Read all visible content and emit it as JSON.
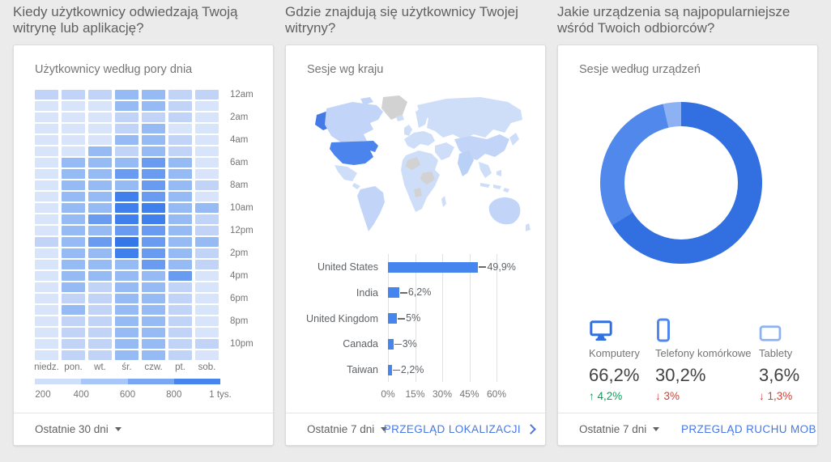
{
  "page": {
    "background": "#ebebeb",
    "link_color": "#4778e7"
  },
  "cards": {
    "time": {
      "question": "Kiedy użytkownicy odwiedzają Twoją witrynę lub aplikację?",
      "title": "Użytkownicy według pory dnia",
      "footer_range": "Ostatnie 30 dni"
    },
    "geo": {
      "question": "Gdzie znajdują się użytkownicy Twojej witryny?",
      "title": "Sesje wg kraju",
      "footer_range": "Ostatnie 7 dni",
      "footer_link": "PRZEGLĄD LOKALIZACJI"
    },
    "devices": {
      "question": "Jakie urządzenia są najpopularniejsze wśród Twoich odbiorców?",
      "title": "Sesje według urządzeń",
      "footer_range": "Ostatnie 7 dni",
      "footer_link": "PRZEGLĄD RUCHU MOBILNE"
    }
  },
  "chart_data": [
    {
      "type": "heatmap",
      "title": "Użytkownicy według pory dnia",
      "day_labels": [
        "niedz.",
        "pon.",
        "wt.",
        "śr.",
        "czw.",
        "pt.",
        "sob."
      ],
      "hour_labels": [
        "12am",
        "2am",
        "4am",
        "6am",
        "8am",
        "10am",
        "12pm",
        "2pm",
        "4pm",
        "6pm",
        "8pm",
        "10pm"
      ],
      "legend_labels": [
        "200",
        "400",
        "600",
        "800",
        "1 tys."
      ],
      "legend_colors": [
        "#cfdffa",
        "#a8c6f7",
        "#7aa7f2",
        "#4685ed"
      ],
      "palette": [
        "#d8e4fa",
        "#c1d4f8",
        "#96baf4",
        "#699cf0",
        "#4080ec",
        "#3576e9"
      ],
      "scale_min": 200,
      "scale_max": 1000,
      "matrix": [
        [
          2,
          2,
          2,
          3,
          3,
          2,
          2
        ],
        [
          1,
          1,
          1,
          3,
          3,
          2,
          1
        ],
        [
          1,
          1,
          1,
          2,
          2,
          2,
          1
        ],
        [
          1,
          1,
          1,
          2,
          3,
          1,
          1
        ],
        [
          1,
          1,
          1,
          3,
          3,
          2,
          1
        ],
        [
          1,
          1,
          3,
          2,
          3,
          2,
          1
        ],
        [
          1,
          3,
          3,
          3,
          4,
          3,
          1
        ],
        [
          1,
          3,
          3,
          4,
          4,
          3,
          1
        ],
        [
          1,
          3,
          3,
          3,
          4,
          3,
          2
        ],
        [
          1,
          3,
          3,
          5,
          4,
          3,
          1
        ],
        [
          1,
          3,
          3,
          5,
          5,
          3,
          3
        ],
        [
          1,
          3,
          4,
          5,
          5,
          3,
          2
        ],
        [
          1,
          3,
          3,
          4,
          4,
          3,
          2
        ],
        [
          2,
          3,
          4,
          6,
          4,
          3,
          3
        ],
        [
          1,
          3,
          3,
          5,
          4,
          3,
          2
        ],
        [
          1,
          3,
          3,
          3,
          4,
          3,
          2
        ],
        [
          1,
          3,
          3,
          3,
          3,
          4,
          1
        ],
        [
          1,
          3,
          2,
          3,
          3,
          2,
          1
        ],
        [
          1,
          2,
          2,
          3,
          3,
          2,
          1
        ],
        [
          1,
          3,
          2,
          3,
          3,
          2,
          1
        ],
        [
          1,
          2,
          2,
          3,
          3,
          2,
          1
        ],
        [
          1,
          2,
          2,
          3,
          3,
          2,
          1
        ],
        [
          1,
          2,
          2,
          3,
          3,
          2,
          2
        ],
        [
          1,
          2,
          2,
          3,
          3,
          2,
          1
        ]
      ]
    },
    {
      "type": "bar",
      "title": "Sesje wg kraju",
      "categories": [
        "United States",
        "India",
        "United Kingdom",
        "Canada",
        "Taiwan"
      ],
      "values": [
        49.9,
        6.2,
        5,
        3,
        2.2
      ],
      "value_labels": [
        "49,9%",
        "6,2%",
        "5%",
        "3%",
        "2,2%"
      ],
      "xticks": [
        "0%",
        "15%",
        "30%",
        "45%",
        "60%"
      ],
      "xlim": [
        0,
        60
      ],
      "bar_color": "#4684ee",
      "map_colors": {
        "land": "#cedef9",
        "alt": "#c2d5f8",
        "muted": "#d2d2d2",
        "highlight_us": "#4b84ec",
        "highlight_alaska": "#4479e8",
        "india": "#b9d0f7"
      }
    },
    {
      "type": "pie",
      "title": "Sesje według urządzeń",
      "donut": true,
      "segments": [
        {
          "label": "Komputery",
          "value": 66.2,
          "value_label": "66,2%",
          "delta_label": "4,2%",
          "delta_dir": "up",
          "color": "#3270e2",
          "icon": "desktop-icon"
        },
        {
          "label": "Telefony komórkowe",
          "value": 30.2,
          "value_label": "30,2%",
          "delta_label": "3%",
          "delta_dir": "down",
          "color": "#5089eb",
          "icon": "phone-icon"
        },
        {
          "label": "Tablety",
          "value": 3.6,
          "value_label": "3,6%",
          "delta_label": "1,3%",
          "delta_dir": "down",
          "color": "#8db2f4",
          "icon": "tablet-icon"
        }
      ],
      "up_color": "#0f9d58",
      "down_color": "#d23f31"
    }
  ]
}
